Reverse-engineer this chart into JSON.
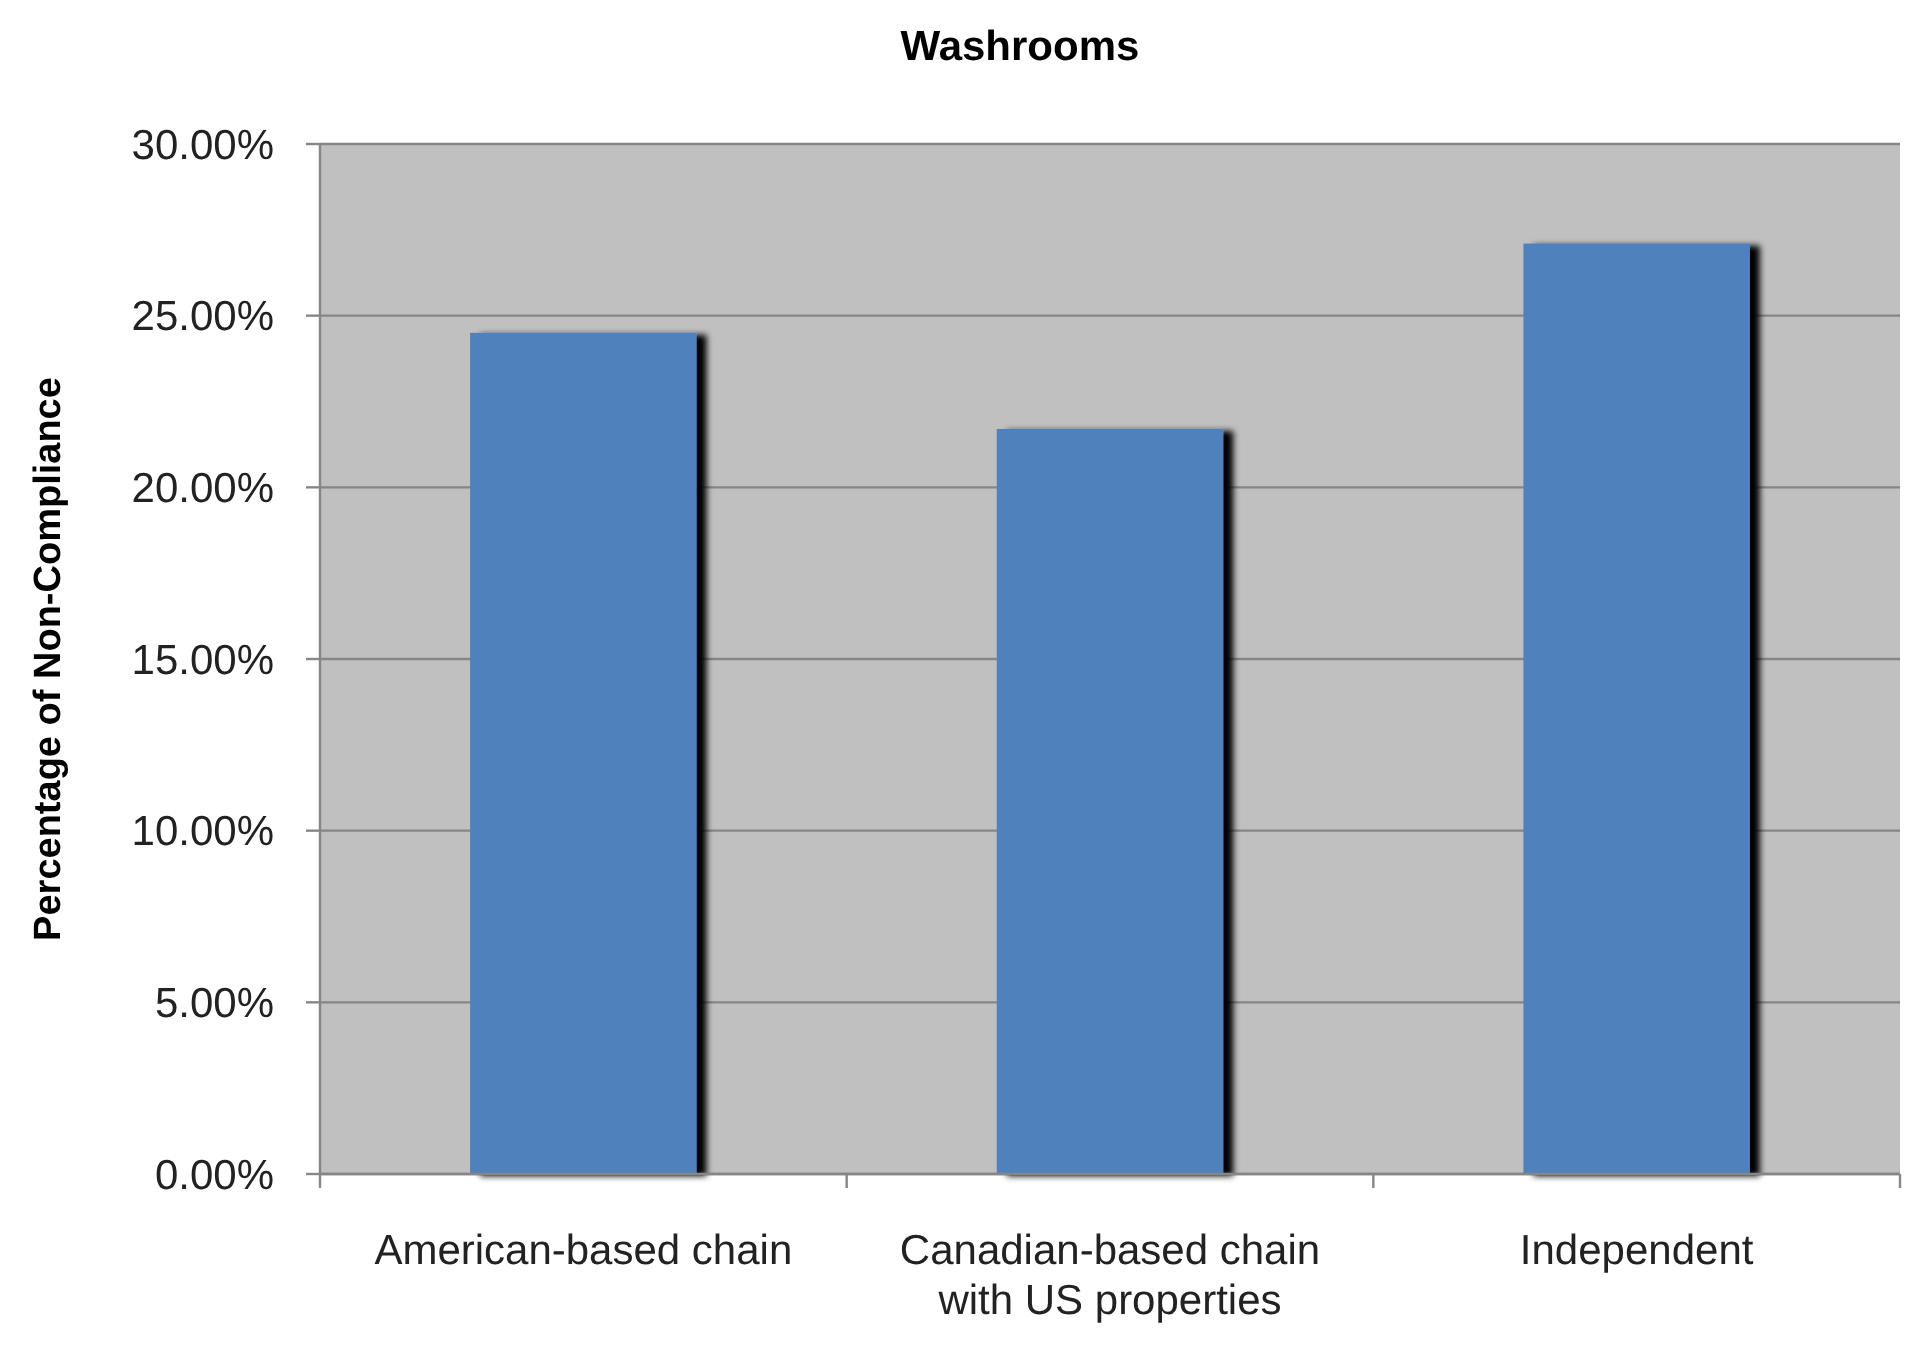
{
  "chart_data": {
    "type": "bar",
    "title": "Washrooms",
    "ylabel": "Percentage of Non-Compliance",
    "categories": [
      "American-based chain",
      "Canadian-based chain with US properties",
      "Independent"
    ],
    "values": [
      24.5,
      21.7,
      27.1
    ],
    "color": "#4f81bd",
    "ylim": [
      0,
      30
    ],
    "yticks": [
      {
        "value": 0,
        "label": "0.00%"
      },
      {
        "value": 5,
        "label": "5.00%"
      },
      {
        "value": 10,
        "label": "10.00%"
      },
      {
        "value": 15,
        "label": "15.00%"
      },
      {
        "value": 20,
        "label": "20.00%"
      },
      {
        "value": 25,
        "label": "25.00%"
      },
      {
        "value": 30,
        "label": "30.00%"
      }
    ],
    "grid": "y"
  }
}
